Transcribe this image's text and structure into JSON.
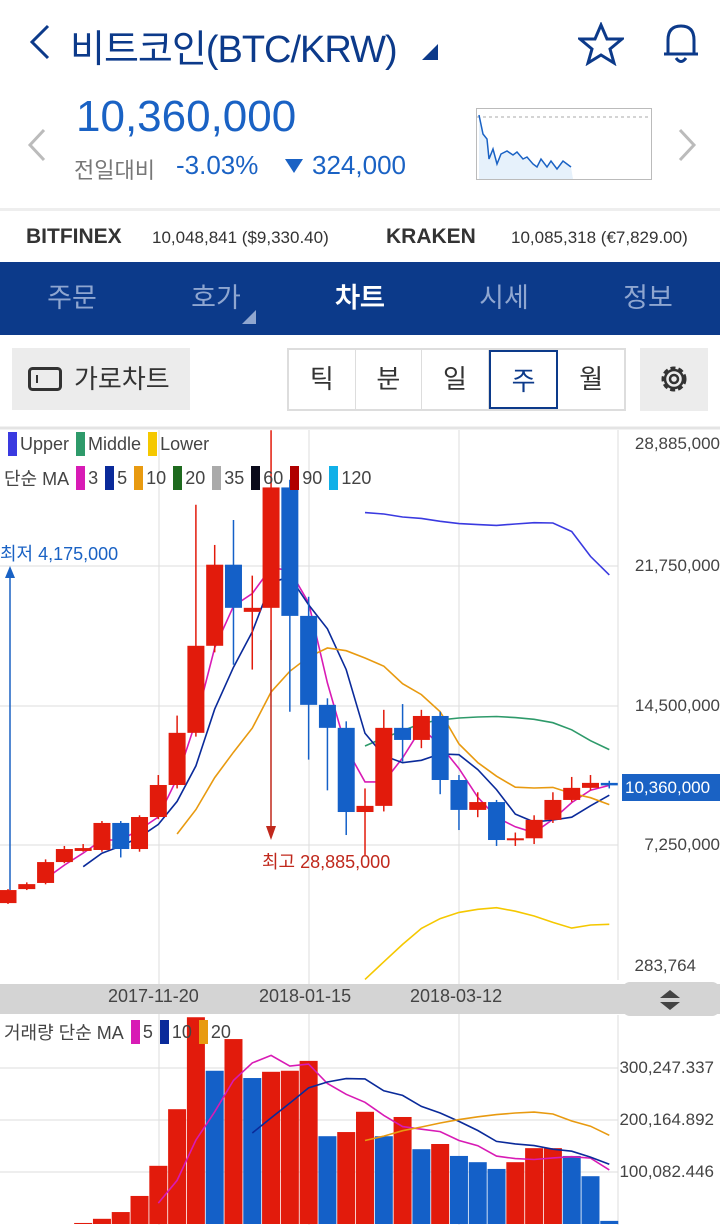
{
  "header": {
    "title": "비트코인(BTC/KRW)",
    "price": "10,360,000",
    "change_label": "전일대비",
    "change_pct": "-3.03%",
    "change_amount": "324,000"
  },
  "exchanges": [
    {
      "name": "BITFINEX",
      "value": "10,048,841 ($9,330.40)"
    },
    {
      "name": "KRAKEN",
      "value": "10,085,318 (€7,829.00)"
    }
  ],
  "tabs": [
    {
      "label": "주문"
    },
    {
      "label": "호가"
    },
    {
      "label": "차트",
      "active": true
    },
    {
      "label": "시세"
    },
    {
      "label": "정보"
    }
  ],
  "toolbar": {
    "landscape_label": "가로차트",
    "periods": [
      "틱",
      "분",
      "일",
      "주",
      "월"
    ],
    "selected_period": "주"
  },
  "colors": {
    "brand": "#0c3a8a",
    "up": "#e21b0c",
    "down": "#1460c8",
    "current_price_bg": "#1a62c4"
  },
  "chart_data": {
    "type": "candlestick",
    "interval": "week",
    "legend_bb": [
      {
        "name": "Upper",
        "color": "#3a3ae0"
      },
      {
        "name": "Middle",
        "color": "#2e9a6a"
      },
      {
        "name": "Lower",
        "color": "#f5c800"
      }
    ],
    "legend_ma_label": "단순 MA",
    "legend_ma": [
      {
        "name": "3",
        "color": "#d81bb5"
      },
      {
        "name": "5",
        "color": "#0a2a9a"
      },
      {
        "name": "10",
        "color": "#e89a10"
      },
      {
        "name": "20",
        "color": "#1e6a1e"
      },
      {
        "name": "35",
        "color": "#aaaaaa"
      },
      {
        "name": "60",
        "color": "#0a0a1a"
      },
      {
        "name": "90",
        "color": "#b00000"
      },
      {
        "name": "120",
        "color": "#10b0e8"
      }
    ],
    "y_labels": [
      "28,885,000",
      "21,750,000",
      "14,500,000",
      "7,250,000",
      "283,764"
    ],
    "current_price": "10,360,000",
    "x_labels": [
      "2017-11-20",
      "2018-01-15",
      "2018-03-12"
    ],
    "low_annotation": "최저 4,175,000",
    "high_annotation": "최고 28,885,000",
    "ohlc": [
      [
        4220000,
        4950000,
        4175000,
        4900000
      ],
      [
        4950000,
        5300000,
        4900000,
        5210000
      ],
      [
        5270000,
        6500000,
        5200000,
        6360000
      ],
      [
        6360000,
        7200000,
        6300000,
        7040000
      ],
      [
        6940000,
        7300000,
        6900000,
        7090000
      ],
      [
        6990000,
        8500000,
        6900000,
        8400000
      ],
      [
        8400000,
        8500000,
        6600000,
        7040000
      ],
      [
        7040000,
        8800000,
        6900000,
        8710000
      ],
      [
        8710000,
        10900000,
        8600000,
        10380000
      ],
      [
        10380000,
        14000000,
        10200000,
        13100000
      ],
      [
        13100000,
        25000000,
        12900000,
        17640000
      ],
      [
        17640000,
        22900000,
        17300000,
        21870000
      ],
      [
        21870000,
        24200000,
        16650000,
        19620000
      ],
      [
        19410000,
        21300000,
        16400000,
        19620000
      ],
      [
        19620000,
        28885000,
        16900000,
        25900000
      ],
      [
        25900000,
        26300000,
        14200000,
        19200000
      ],
      [
        19200000,
        20200000,
        11700000,
        14560000
      ],
      [
        14560000,
        14900000,
        10100000,
        13360000
      ],
      [
        13360000,
        13700000,
        7770000,
        8970000
      ],
      [
        8970000,
        10200000,
        6730000,
        9290000
      ],
      [
        9290000,
        14300000,
        9000000,
        13360000
      ],
      [
        13360000,
        14600000,
        11600000,
        12730000
      ],
      [
        12730000,
        14300000,
        12300000,
        13980000
      ],
      [
        13980000,
        14200000,
        9900000,
        10640000
      ],
      [
        10640000,
        10900000,
        8030000,
        9080000
      ],
      [
        9080000,
        10000000,
        8700000,
        9490000
      ],
      [
        9490000,
        9600000,
        7200000,
        7510000
      ],
      [
        7510000,
        7900000,
        7200000,
        7600000
      ],
      [
        7600000,
        8800000,
        7300000,
        8560000
      ],
      [
        8560000,
        10000000,
        8400000,
        9600000
      ],
      [
        9600000,
        10800000,
        9500000,
        10230000
      ],
      [
        10230000,
        10900000,
        10100000,
        10490000
      ],
      [
        10490000,
        10600000,
        10200000,
        10360000
      ]
    ],
    "volume_legend_label": "거래량 단순 MA",
    "volume_legend": [
      {
        "name": "5",
        "color": "#d81bb5"
      },
      {
        "name": "10",
        "color": "#0a2a9a"
      },
      {
        "name": "20",
        "color": "#e89a10"
      }
    ],
    "volume_y_labels": [
      "300,247.337",
      "200,164.892",
      "100,082.446"
    ],
    "volume": [
      0,
      0,
      0,
      0,
      2000,
      10000,
      23000,
      54000,
      112000,
      221000,
      398000,
      295000,
      356000,
      281000,
      293000,
      295000,
      314000,
      169000,
      177000,
      216000,
      169000,
      206000,
      144000,
      154000,
      131000,
      119000,
      106000,
      119000,
      146000,
      146000,
      131000,
      92000,
      6000
    ],
    "volume_up": [
      1,
      1,
      1,
      1,
      1,
      1,
      1,
      1,
      1,
      1,
      1,
      0,
      1,
      0,
      1,
      1,
      1,
      0,
      1,
      1,
      0,
      1,
      0,
      1,
      0,
      0,
      0,
      1,
      1,
      1,
      0,
      0,
      0
    ]
  }
}
